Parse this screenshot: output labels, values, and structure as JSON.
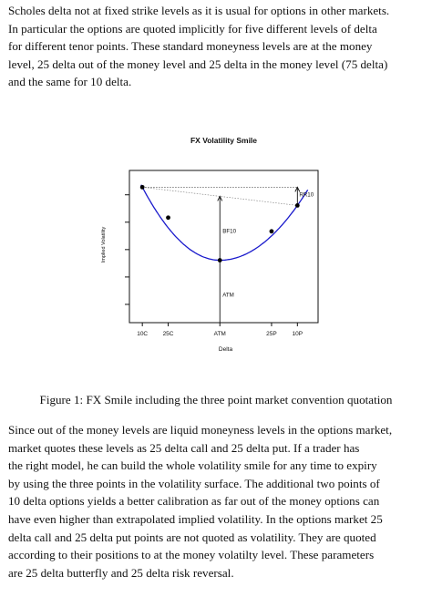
{
  "paragraph1": [
    "Scholes delta not at fixed strike levels as it is usual for options in other markets.",
    "In particular the options are quoted implicitly for five different levels of delta",
    "for different tenor points.  These standard moneyness levels are at the money",
    "level, 25 delta out of the money level and 25 delta in the money level (75 delta)",
    "and the same for 10 delta."
  ],
  "caption": "Figure 1: FX Smile including the three point market convention quotation",
  "paragraph2": [
    "Since out of the money levels are liquid moneyness levels in the options market,",
    "market quotes these levels as 25 delta call and 25 delta put.  If a trader has",
    "the right model, he can build the whole volatility smile for any time to expiry",
    "by using the three points in the volatility surface. The additional two points of",
    "10 delta options yields a better calibration as far out of the money options can",
    "have even higher than extrapolated implied volatility. In the options market 25",
    "delta call and 25 delta put points are not quoted as volatility.  They are quoted",
    "according to their positions to at the money volatilty level.  These parameters",
    "are 25 delta butterfly and 25 delta risk reversal."
  ],
  "chart_data": {
    "type": "line",
    "title": "FX Volatility Smile",
    "xlabel": "Delta",
    "ylabel": "Implied Volatility",
    "categories": [
      "10C",
      "25C",
      "ATM",
      "25P",
      "10P"
    ],
    "x": [
      1,
      2,
      4,
      6,
      7
    ],
    "xlim": [
      0.5,
      7.8
    ],
    "ylim": [
      0,
      10
    ],
    "grid": false,
    "curve_color": "#1a1acc",
    "points": {
      "x": [
        1,
        2,
        4,
        6,
        7
      ],
      "y": [
        8.9,
        6.9,
        4.1,
        6.0,
        7.7
      ]
    },
    "annotations": [
      {
        "label": "RR10",
        "kind": "risk-reversal",
        "x": 7,
        "y_from": 7.7,
        "y_to": 8.9
      },
      {
        "label": "BF10",
        "kind": "butterfly",
        "x": 4,
        "y_from": 4.1,
        "y_to": 8.3
      },
      {
        "label": "ATM",
        "kind": "at-the-money",
        "x": 4,
        "y_from": 0,
        "y_to": 4.1
      }
    ]
  }
}
